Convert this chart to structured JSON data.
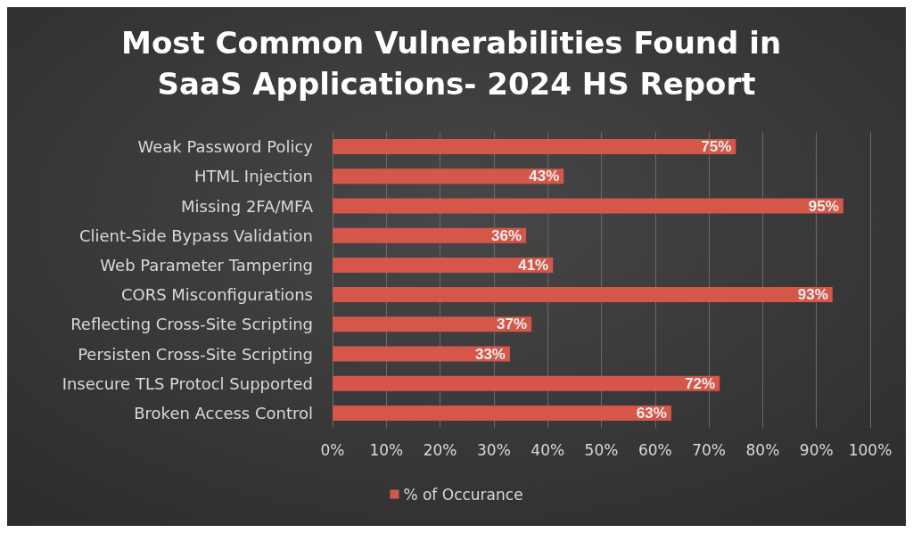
{
  "chart_data": {
    "type": "bar",
    "orientation": "horizontal",
    "title": "Most Common Vulnerabilities Found in SaaS Applications- 2024 HS Report",
    "categories": [
      "Weak Password Policy",
      "HTML Injection",
      "Missing 2FA/MFA",
      "Client-Side Bypass Validation",
      "Web Parameter Tampering",
      "CORS Misconfigurations",
      "Reflecting Cross-Site Scripting",
      "Persisten Cross-Site Scripting",
      "Insecure TLS Protocl Supported",
      "Broken Access Control"
    ],
    "series": [
      {
        "name": "% of Occurance",
        "color": "#d5574a",
        "values": [
          75,
          43,
          95,
          36,
          41,
          93,
          37,
          33,
          72,
          63
        ],
        "value_labels": [
          "75%",
          "43%",
          "95%",
          "36%",
          "41%",
          "93%",
          "37%",
          "33%",
          "72%",
          "63%"
        ]
      }
    ],
    "xlim": [
      0,
      100
    ],
    "xticks": [
      {
        "value": 0,
        "label": "0%"
      },
      {
        "value": 10,
        "label": "10%"
      },
      {
        "value": 20,
        "label": "20%"
      },
      {
        "value": 30,
        "label": "30%"
      },
      {
        "value": 40,
        "label": "40%"
      },
      {
        "value": 50,
        "label": "50%"
      },
      {
        "value": 60,
        "label": "60%"
      },
      {
        "value": 70,
        "label": "70%"
      },
      {
        "value": 80,
        "label": "80%"
      },
      {
        "value": 90,
        "label": "90%"
      },
      {
        "value": 100,
        "label": "100%"
      }
    ],
    "grid": "x",
    "legend": "bottom"
  }
}
